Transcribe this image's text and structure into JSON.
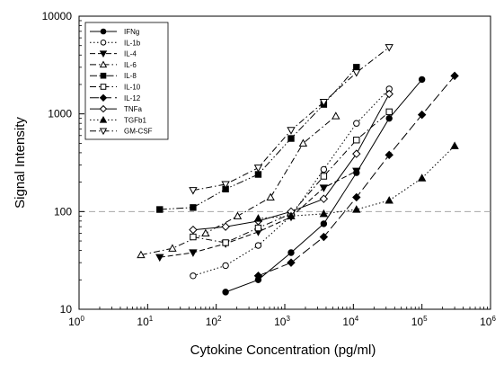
{
  "chart_data": {
    "type": "line",
    "xlabel": "Cytokine Concentration (pg/ml)",
    "ylabel": "Signal Intensity",
    "x_scale": "log",
    "y_scale": "log",
    "xlim": [
      1,
      1000000
    ],
    "ylim": [
      10,
      10000
    ],
    "x_ticks": [
      {
        "value": 1,
        "base": "10",
        "exp": "0"
      },
      {
        "value": 10,
        "base": "10",
        "exp": "1"
      },
      {
        "value": 100,
        "base": "10",
        "exp": "2"
      },
      {
        "value": 1000,
        "base": "10",
        "exp": "3"
      },
      {
        "value": 10000,
        "base": "10",
        "exp": "4"
      },
      {
        "value": 100000,
        "base": "10",
        "exp": "5"
      },
      {
        "value": 1000000,
        "base": "10",
        "exp": "6"
      }
    ],
    "y_ticks": [
      {
        "value": 10,
        "label": "10"
      },
      {
        "value": 100,
        "label": "100"
      },
      {
        "value": 1000,
        "label": "1000"
      },
      {
        "value": 10000,
        "label": "10000"
      }
    ],
    "grid": "dashed horizontal line at 100",
    "legend_position": "top-left",
    "series": [
      {
        "name": "IFNg",
        "marker": "circle-filled",
        "dash": "solid",
        "x": [
          137,
          410,
          1235,
          3700,
          11100,
          33300,
          100000
        ],
        "y": [
          15,
          20,
          38,
          75,
          250,
          900,
          2250
        ]
      },
      {
        "name": "IL-1b",
        "marker": "circle-open",
        "dash": "dotted",
        "x": [
          46,
          137,
          410,
          1235,
          3700,
          11100,
          33300
        ],
        "y": [
          22,
          28,
          45,
          90,
          270,
          800,
          1800
        ]
      },
      {
        "name": "IL-4",
        "marker": "triangle-down-filled",
        "dash": "dashed",
        "x": [
          15,
          46,
          137,
          410,
          1235,
          3700,
          11100
        ],
        "y": [
          34,
          38,
          47,
          62,
          88,
          175,
          260
        ]
      },
      {
        "name": "IL-6",
        "marker": "triangle-up-open",
        "dash": "dash-dot",
        "x": [
          8,
          23,
          70,
          205,
          620,
          1850,
          5550
        ],
        "y": [
          36,
          42,
          60,
          90,
          140,
          500,
          950
        ]
      },
      {
        "name": "IL-8",
        "marker": "square-filled",
        "dash": "dash-dot-dot",
        "x": [
          15,
          46,
          137,
          410,
          1235,
          3700,
          11100
        ],
        "y": [
          105,
          110,
          170,
          240,
          560,
          1250,
          3000
        ]
      },
      {
        "name": "IL-10",
        "marker": "square-open",
        "dash": "dash-dot",
        "x": [
          46,
          137,
          410,
          1235,
          3700,
          11100,
          33300
        ],
        "y": [
          55,
          48,
          68,
          95,
          230,
          540,
          1050
        ]
      },
      {
        "name": "IL-12",
        "marker": "diamond-filled",
        "dash": "long-dash",
        "x": [
          410,
          1235,
          3700,
          11100,
          33300,
          100000,
          300000
        ],
        "y": [
          22,
          30,
          55,
          140,
          380,
          980,
          2450
        ]
      },
      {
        "name": "TNFa",
        "marker": "diamond-open",
        "dash": "solid",
        "x": [
          46,
          137,
          410,
          1235,
          3700,
          11100,
          33300
        ],
        "y": [
          65,
          70,
          80,
          100,
          135,
          390,
          1600
        ]
      },
      {
        "name": "TGFb1",
        "marker": "triangle-up-filled",
        "dash": "dotted",
        "x": [
          410,
          1235,
          3700,
          11100,
          33300,
          100000,
          300000
        ],
        "y": [
          85,
          90,
          95,
          105,
          130,
          220,
          470
        ]
      },
      {
        "name": "GM-CSF",
        "marker": "triangle-down-open",
        "dash": "dash-dot",
        "x": [
          46,
          137,
          410,
          1235,
          3700,
          11100,
          33300
        ],
        "y": [
          165,
          190,
          280,
          680,
          1320,
          2650,
          4800
        ]
      }
    ]
  }
}
